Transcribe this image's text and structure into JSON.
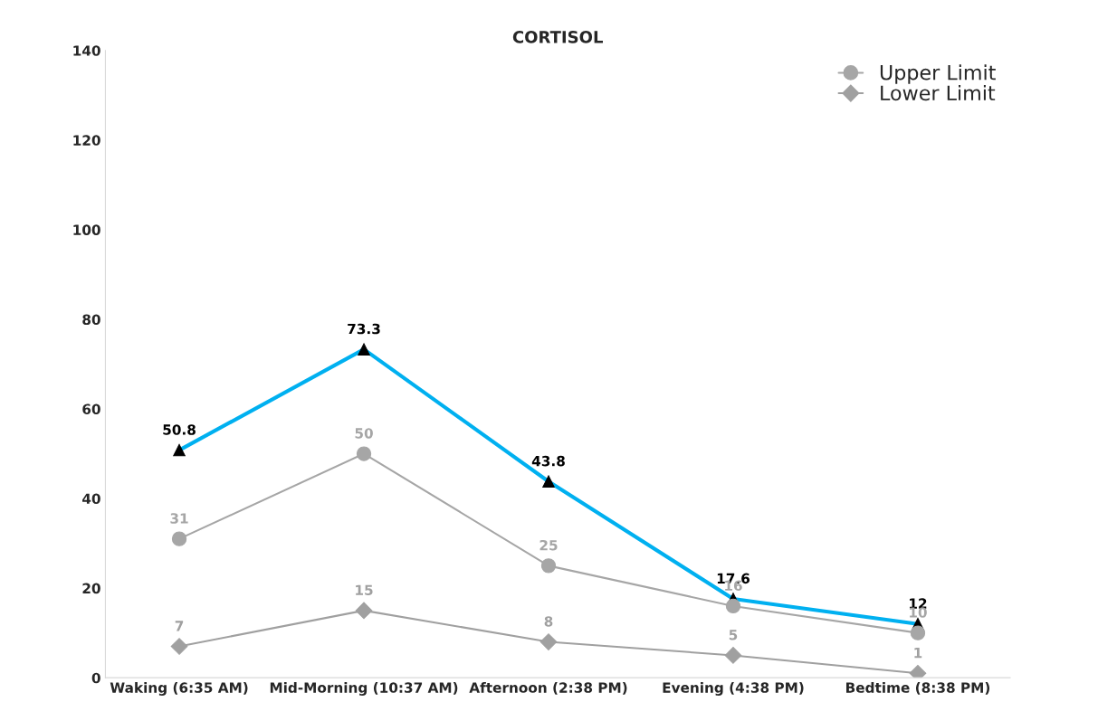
{
  "chart_data": {
    "type": "line",
    "title": "CORTISOL",
    "categories": [
      "Waking (6:35 AM)",
      "Mid-Morning (10:37 AM)",
      "Afternoon (2:38 PM)",
      "Evening (4:38 PM)",
      "Bedtime (8:38 PM)"
    ],
    "series": [
      {
        "color": "#00b0f0",
        "marker": "triangle",
        "values": [
          50.8,
          73.3,
          43.8,
          17.6,
          12
        ]
      },
      {
        "name": "Upper Limit",
        "color": "#a6a6a6",
        "marker": "circle",
        "values": [
          31,
          50,
          25,
          16,
          10
        ]
      },
      {
        "name": "Lower Limit",
        "color": "#a0a0a0",
        "marker": "diamond",
        "values": [
          7,
          15,
          8,
          5,
          1
        ]
      }
    ],
    "ylim": [
      0,
      140
    ],
    "yticks": [
      0,
      20,
      40,
      60,
      80,
      100,
      120,
      140
    ],
    "data_labels": true,
    "grid": false,
    "legend": "top right"
  }
}
